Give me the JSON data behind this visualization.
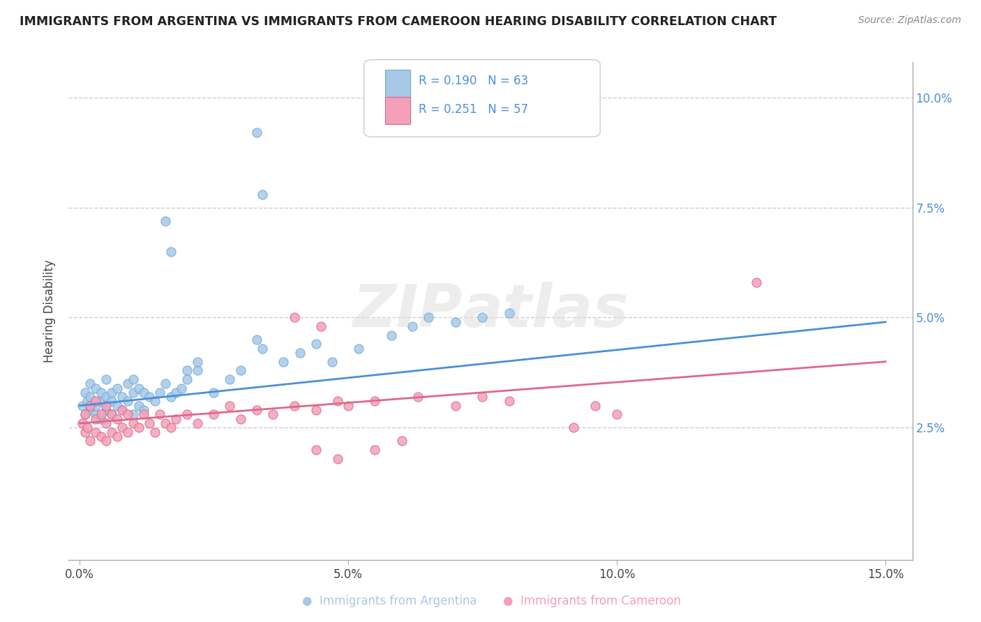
{
  "title": "IMMIGRANTS FROM ARGENTINA VS IMMIGRANTS FROM CAMEROON HEARING DISABILITY CORRELATION CHART",
  "source_text": "Source: ZipAtlas.com",
  "ylabel": "Hearing Disability",
  "argentina_color": "#a8c8e8",
  "cameroon_color": "#f4a0b8",
  "argentina_edge_color": "#6aaad4",
  "cameroon_edge_color": "#d96888",
  "argentina_line_color": "#4a90d9",
  "cameroon_line_color": "#e06888",
  "watermark": "ZIPatlas",
  "xlim": [
    -0.002,
    0.155
  ],
  "ylim": [
    -0.005,
    0.108
  ],
  "xtick_vals": [
    0.0,
    0.05,
    0.1,
    0.15
  ],
  "xtick_labels": [
    "0.0%",
    "5.0%",
    "10.0%",
    "15.0%"
  ],
  "ytick_vals": [
    0.025,
    0.05,
    0.075,
    0.1
  ],
  "ytick_labels": [
    "2.5%",
    "5.0%",
    "7.5%",
    "10.0%"
  ],
  "legend_R_arg": "R = 0.190",
  "legend_N_arg": "N = 63",
  "legend_R_cam": "R = 0.251",
  "legend_N_cam": "N = 57",
  "arg_line_x": [
    0.0,
    0.15
  ],
  "arg_line_y": [
    0.03,
    0.049
  ],
  "cam_line_x": [
    0.0,
    0.15
  ],
  "cam_line_y": [
    0.026,
    0.04
  ],
  "arg_x": [
    0.0005,
    0.001,
    0.001,
    0.0015,
    0.002,
    0.002,
    0.002,
    0.003,
    0.003,
    0.003,
    0.004,
    0.004,
    0.004,
    0.005,
    0.005,
    0.005,
    0.006,
    0.006,
    0.006,
    0.007,
    0.007,
    0.008,
    0.008,
    0.009,
    0.009,
    0.01,
    0.01,
    0.01,
    0.011,
    0.011,
    0.012,
    0.012,
    0.013,
    0.014,
    0.015,
    0.016,
    0.017,
    0.018,
    0.019,
    0.02,
    0.022,
    0.025,
    0.028,
    0.03,
    0.033,
    0.034,
    0.038,
    0.041,
    0.044,
    0.047,
    0.052,
    0.058,
    0.062,
    0.065,
    0.07,
    0.075,
    0.08,
    0.016,
    0.017,
    0.033,
    0.034,
    0.02,
    0.022
  ],
  "arg_y": [
    0.03,
    0.028,
    0.033,
    0.031,
    0.029,
    0.032,
    0.035,
    0.028,
    0.03,
    0.034,
    0.027,
    0.031,
    0.033,
    0.029,
    0.032,
    0.036,
    0.028,
    0.031,
    0.033,
    0.03,
    0.034,
    0.029,
    0.032,
    0.031,
    0.035,
    0.028,
    0.033,
    0.036,
    0.03,
    0.034,
    0.029,
    0.033,
    0.032,
    0.031,
    0.033,
    0.035,
    0.032,
    0.033,
    0.034,
    0.036,
    0.038,
    0.033,
    0.036,
    0.038,
    0.092,
    0.078,
    0.04,
    0.042,
    0.044,
    0.04,
    0.043,
    0.046,
    0.048,
    0.05,
    0.049,
    0.05,
    0.051,
    0.072,
    0.065,
    0.045,
    0.043,
    0.038,
    0.04
  ],
  "cam_x": [
    0.0005,
    0.001,
    0.001,
    0.0015,
    0.002,
    0.002,
    0.003,
    0.003,
    0.003,
    0.004,
    0.004,
    0.005,
    0.005,
    0.005,
    0.006,
    0.006,
    0.007,
    0.007,
    0.008,
    0.008,
    0.009,
    0.009,
    0.01,
    0.011,
    0.012,
    0.013,
    0.014,
    0.015,
    0.016,
    0.017,
    0.018,
    0.02,
    0.022,
    0.025,
    0.028,
    0.03,
    0.033,
    0.036,
    0.04,
    0.044,
    0.048,
    0.04,
    0.045,
    0.05,
    0.055,
    0.063,
    0.07,
    0.075,
    0.08,
    0.092,
    0.096,
    0.1,
    0.126,
    0.044,
    0.048,
    0.055,
    0.06
  ],
  "cam_y": [
    0.026,
    0.024,
    0.028,
    0.025,
    0.022,
    0.03,
    0.024,
    0.027,
    0.031,
    0.023,
    0.028,
    0.022,
    0.026,
    0.03,
    0.024,
    0.028,
    0.023,
    0.027,
    0.025,
    0.029,
    0.024,
    0.028,
    0.026,
    0.025,
    0.028,
    0.026,
    0.024,
    0.028,
    0.026,
    0.025,
    0.027,
    0.028,
    0.026,
    0.028,
    0.03,
    0.027,
    0.029,
    0.028,
    0.03,
    0.029,
    0.031,
    0.05,
    0.048,
    0.03,
    0.031,
    0.032,
    0.03,
    0.032,
    0.031,
    0.025,
    0.03,
    0.028,
    0.058,
    0.02,
    0.018,
    0.02,
    0.022
  ]
}
